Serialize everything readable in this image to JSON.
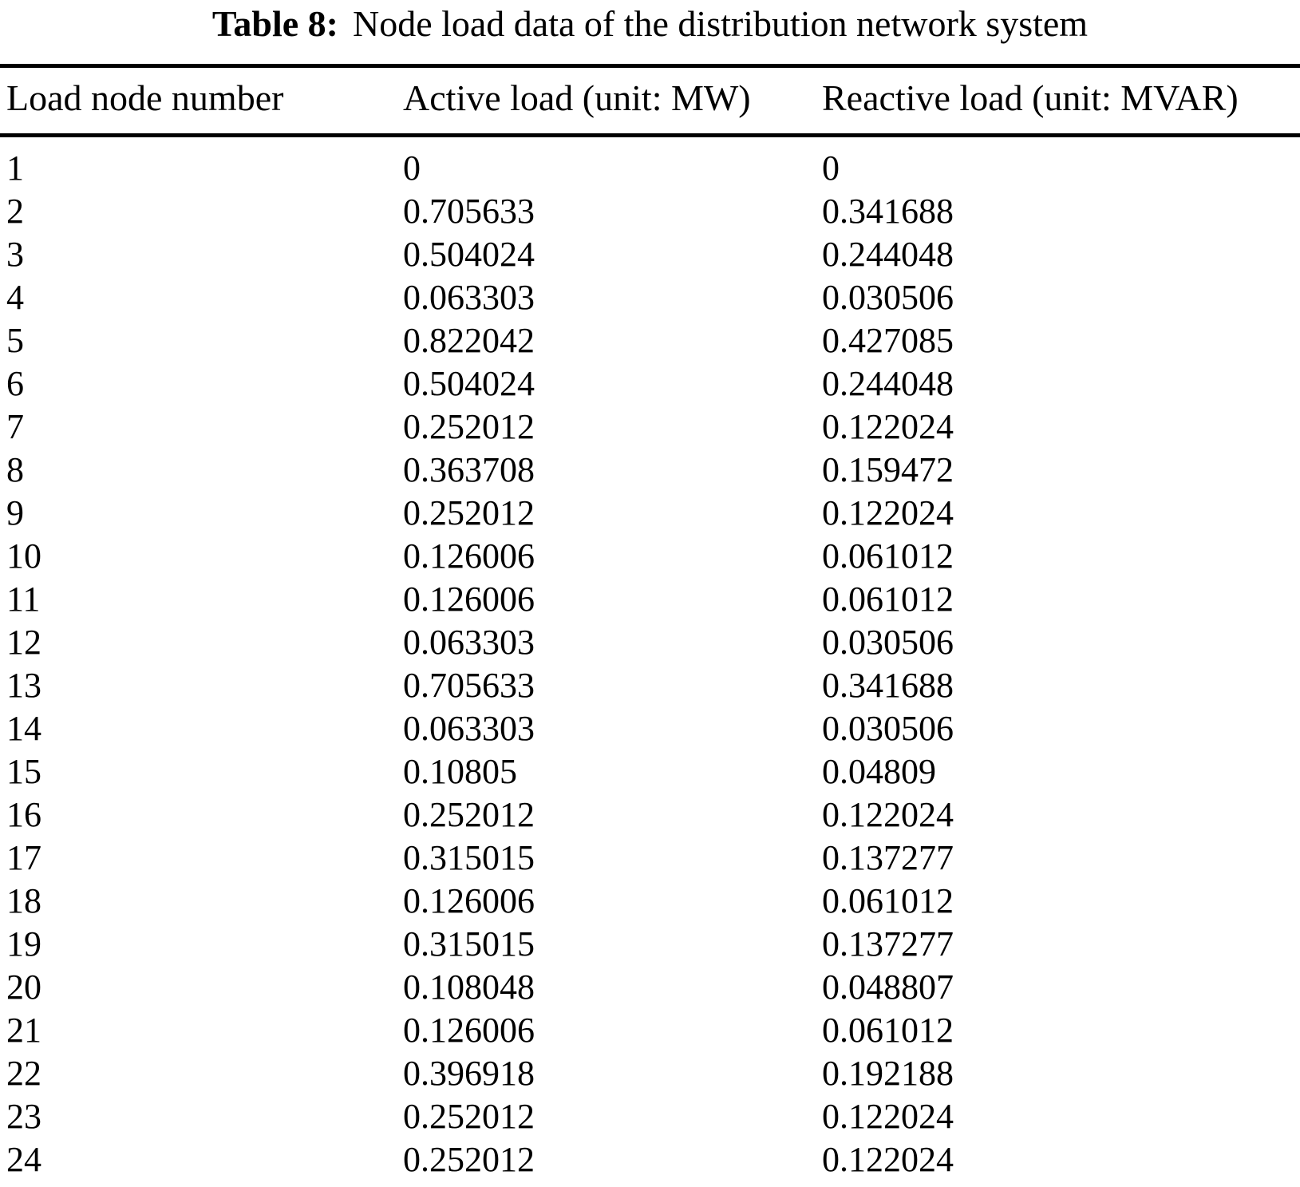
{
  "caption": {
    "label": "Table 8:",
    "text": "Node load data of the distribution network system"
  },
  "table": {
    "columns": [
      "Load node number",
      "Active load (unit: MW)",
      "Reactive load (unit: MVAR)"
    ],
    "rows": [
      [
        "1",
        "0",
        "0"
      ],
      [
        "2",
        "0.705633",
        "0.341688"
      ],
      [
        "3",
        "0.504024",
        "0.244048"
      ],
      [
        "4",
        "0.063303",
        "0.030506"
      ],
      [
        "5",
        "0.822042",
        "0.427085"
      ],
      [
        "6",
        "0.504024",
        "0.244048"
      ],
      [
        "7",
        "0.252012",
        "0.122024"
      ],
      [
        "8",
        "0.363708",
        "0.159472"
      ],
      [
        "9",
        "0.252012",
        "0.122024"
      ],
      [
        "10",
        "0.126006",
        "0.061012"
      ],
      [
        "11",
        "0.126006",
        "0.061012"
      ],
      [
        "12",
        "0.063303",
        "0.030506"
      ],
      [
        "13",
        "0.705633",
        "0.341688"
      ],
      [
        "14",
        "0.063303",
        "0.030506"
      ],
      [
        "15",
        "0.10805",
        "0.04809"
      ],
      [
        "16",
        "0.252012",
        "0.122024"
      ],
      [
        "17",
        "0.315015",
        "0.137277"
      ],
      [
        "18",
        "0.126006",
        "0.061012"
      ],
      [
        "19",
        "0.315015",
        "0.137277"
      ],
      [
        "20",
        "0.108048",
        "0.048807"
      ],
      [
        "21",
        "0.126006",
        "0.061012"
      ],
      [
        "22",
        "0.396918",
        "0.192188"
      ],
      [
        "23",
        "0.252012",
        "0.122024"
      ],
      [
        "24",
        "0.252012",
        "0.122024"
      ]
    ]
  },
  "chart_data": {
    "type": "table",
    "title": "Table 8: Node load data of the distribution network system",
    "categories": [
      "Load node number",
      "Active load (unit: MW)",
      "Reactive load (unit: MVAR)"
    ],
    "series": [
      {
        "name": "Active load (MW)",
        "values": [
          0,
          0.705633,
          0.504024,
          0.063303,
          0.822042,
          0.504024,
          0.252012,
          0.363708,
          0.252012,
          0.126006,
          0.126006,
          0.063303,
          0.705633,
          0.063303,
          0.10805,
          0.252012,
          0.315015,
          0.126006,
          0.315015,
          0.108048,
          0.126006,
          0.396918,
          0.252012,
          0.252012
        ]
      },
      {
        "name": "Reactive load (MVAR)",
        "values": [
          0,
          0.341688,
          0.244048,
          0.030506,
          0.427085,
          0.244048,
          0.122024,
          0.159472,
          0.122024,
          0.061012,
          0.061012,
          0.030506,
          0.341688,
          0.030506,
          0.04809,
          0.122024,
          0.137277,
          0.061012,
          0.137277,
          0.048807,
          0.061012,
          0.192188,
          0.122024,
          0.122024
        ]
      }
    ]
  }
}
